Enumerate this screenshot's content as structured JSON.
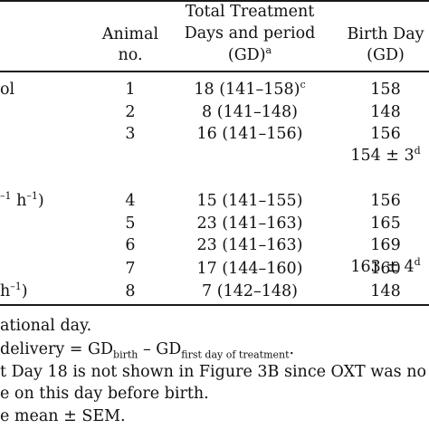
{
  "headers": {
    "animal_line1": "Animal",
    "animal_line2": "no.",
    "treatment_line1": "Total Treatment",
    "treatment_line2": "Days and period",
    "treatment_line3": "(GD)",
    "treatment_sup": "a",
    "birth_line1": "Birth Day",
    "birth_line2": "(GD)"
  },
  "left_fragments": {
    "row1": "ol",
    "row4_pre": "–1",
    "row4_h": " h",
    "row4_sup": "–1",
    "row4_post": ")",
    "row8_h": "h",
    "row8_sup": "–1",
    "row8_post": ")"
  },
  "rows": [
    {
      "animal": "1",
      "period": "18 (141–158)",
      "period_sup": "c",
      "birth": "158"
    },
    {
      "animal": "2",
      "period": "8 (141–148)",
      "period_sup": "",
      "birth": "148"
    },
    {
      "animal": "3",
      "period": "16 (141–156)",
      "period_sup": "",
      "birth": "156"
    },
    {
      "animal": "4",
      "period": "15 (141–155)",
      "period_sup": "",
      "birth": "156"
    },
    {
      "animal": "5",
      "period": "23 (141–163)",
      "period_sup": "",
      "birth": "165"
    },
    {
      "animal": "6",
      "period": "23 (141–163)",
      "period_sup": "",
      "birth": "169"
    },
    {
      "animal": "7",
      "period": "17 (144–160)",
      "period_sup": "",
      "birth": "160"
    },
    {
      "animal": "8",
      "period": "7 (142–148)",
      "period_sup": "",
      "birth": "148"
    }
  ],
  "means": {
    "m1": "154 ± 3",
    "m1_sup": "d",
    "m2": "163 ± 4",
    "m2_sup": "d"
  },
  "footnotes": {
    "a": "ational day.",
    "b_pre": "delivery = GD",
    "b_sub1": "birth",
    "b_mid": " – GD",
    "b_sub2": "first day of treatment",
    "b_post": ".",
    "c1": "t Day 18 is not shown in Figure 3B since OXT was no",
    "c2": "e on this day before birth.",
    "d": "e mean ± SEM."
  }
}
